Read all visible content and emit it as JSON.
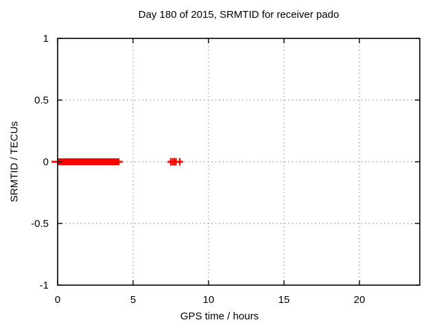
{
  "chart_data": {
    "type": "scatter",
    "title": "Day 180 of 2015, SRMTID for receiver pado",
    "xlabel": "GPS time / hours",
    "ylabel": "SRMTID / TECUs",
    "xlim": [
      0,
      24
    ],
    "ylim": [
      -1,
      1
    ],
    "xticks": [
      0,
      5,
      10,
      15,
      20
    ],
    "xtick_labels": [
      "0",
      "5",
      "10",
      "15",
      "20"
    ],
    "yticks": [
      1,
      0.5,
      0,
      -0.5,
      -1
    ],
    "ytick_labels": [
      "1",
      "0.5",
      "0",
      "-0.5",
      "-1"
    ],
    "grid": true,
    "legend": "none",
    "marker": "plus",
    "colors": {
      "background": "#ffffff",
      "border": "#000000",
      "grid": "#b0b0b0",
      "text": "#000000"
    },
    "series": [
      {
        "name": "SRMTID",
        "color": "#ff0000",
        "y_value": 0,
        "dense_run_hours": [
          0,
          4.1
        ],
        "sparse_points_hours": [
          7.5,
          7.62,
          7.73,
          7.84,
          8.09
        ]
      }
    ]
  }
}
